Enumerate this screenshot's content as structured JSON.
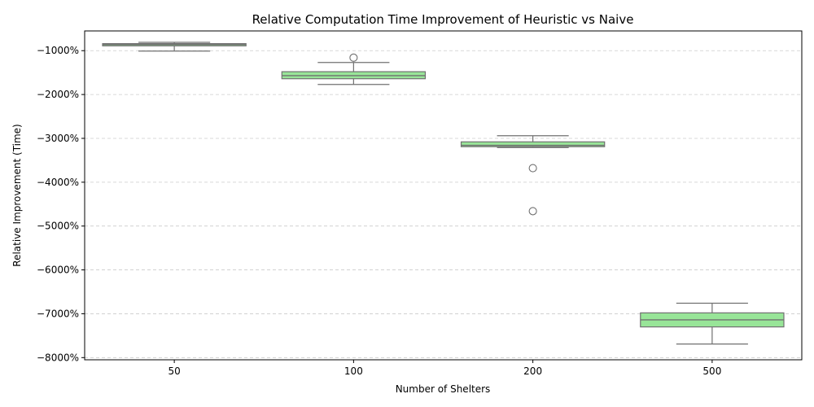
{
  "chart_data": {
    "type": "box",
    "title": "Relative Computation Time Improvement of Heuristic vs Naive",
    "xlabel": "Number of Shelters",
    "ylabel": "Relative Improvement (Time)",
    "categories": [
      "50",
      "100",
      "200",
      "500"
    ],
    "ylim": [
      -8050,
      -550
    ],
    "yticks": [
      -1000,
      -2000,
      -3000,
      -4000,
      -5000,
      -6000,
      -7000,
      -8000
    ],
    "ytick_labels": [
      "−1000%",
      "−2000%",
      "−3000%",
      "−4000%",
      "−5000%",
      "−6000%",
      "−7000%",
      "−8000%"
    ],
    "grid": "y-dashed",
    "box_color": "#98e598",
    "boxes": [
      {
        "category": "50",
        "whisker_low": -1010,
        "q1": -890,
        "median": -860,
        "q3": -840,
        "whisker_high": -810,
        "outliers": []
      },
      {
        "category": "100",
        "whisker_low": -1770,
        "q1": -1640,
        "median": -1570,
        "q3": -1480,
        "whisker_high": -1270,
        "outliers": [
          -1160
        ]
      },
      {
        "category": "200",
        "whisker_low": -3210,
        "q1": -3190,
        "median": -3160,
        "q3": -3080,
        "whisker_high": -2940,
        "outliers": [
          -3680,
          -4660
        ]
      },
      {
        "category": "500",
        "whisker_low": -7690,
        "q1": -7300,
        "median": -7140,
        "q3": -6980,
        "whisker_high": -6760,
        "outliers": []
      }
    ]
  }
}
